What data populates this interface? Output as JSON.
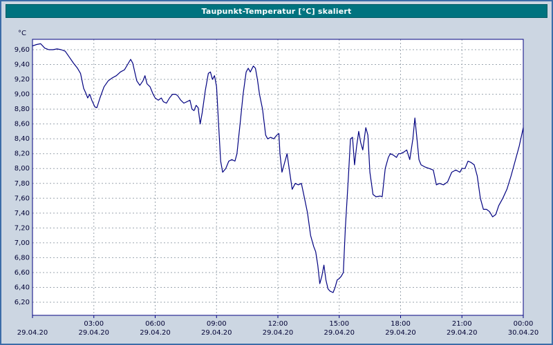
{
  "title": "Taupunkt-Temperatur [°C] skaliert",
  "colors": {
    "window_background": "#ccd6e2",
    "window_border": "#3b6ca8",
    "titlebar_background": "#00737f",
    "titlebar_text": "#ffffff",
    "plot_background": "#ffffff",
    "plot_border": "#000080",
    "gridline": "#9aa4ae",
    "line": "#000080",
    "axis_text": "#000033"
  },
  "chart_data": {
    "type": "line",
    "title": "Taupunkt-Temperatur [°C] skaliert",
    "ylabel": "°C",
    "unit_label": "°C",
    "ylim": [
      6.2,
      9.6
    ],
    "ytick_step": 0.2,
    "ytick_labels": [
      "9,60",
      "9,40",
      "9,20",
      "9,00",
      "8,80",
      "8,60",
      "8,40",
      "8,20",
      "8,00",
      "7,80",
      "7,60",
      "7,40",
      "7,20",
      "7,00",
      "6,80",
      "6,60",
      "6,40",
      "6,20"
    ],
    "ytick_values": [
      9.6,
      9.4,
      9.2,
      9.0,
      8.8,
      8.6,
      8.4,
      8.2,
      8.0,
      7.8,
      7.6,
      7.4,
      7.2,
      7.0,
      6.8,
      6.6,
      6.4,
      6.2
    ],
    "x_hours_range": [
      0,
      24
    ],
    "grid": "dashed",
    "legend": "none",
    "xticks": [
      {
        "hour": 0,
        "time": "",
        "date": "29.04.20"
      },
      {
        "hour": 3,
        "time": "03:00",
        "date": "29.04.20"
      },
      {
        "hour": 6,
        "time": "06:00",
        "date": "29.04.20"
      },
      {
        "hour": 9,
        "time": "09:00",
        "date": "29.04.20"
      },
      {
        "hour": 12,
        "time": "12:00",
        "date": "29.04.20"
      },
      {
        "hour": 15,
        "time": "15:00",
        "date": "29.04.20"
      },
      {
        "hour": 18,
        "time": "18:00",
        "date": "29.04.20"
      },
      {
        "hour": 21,
        "time": "21:00",
        "date": "29.04.20"
      },
      {
        "hour": 24,
        "time": "00:00",
        "date": "30.04.20"
      }
    ],
    "series": [
      {
        "name": "Taupunkt-Temperatur",
        "points": [
          [
            0.0,
            9.65
          ],
          [
            0.2,
            9.67
          ],
          [
            0.4,
            9.68
          ],
          [
            0.6,
            9.62
          ],
          [
            0.8,
            9.6
          ],
          [
            1.0,
            9.6
          ],
          [
            1.2,
            9.61
          ],
          [
            1.4,
            9.6
          ],
          [
            1.6,
            9.58
          ],
          [
            1.8,
            9.5
          ],
          [
            2.0,
            9.42
          ],
          [
            2.2,
            9.35
          ],
          [
            2.35,
            9.28
          ],
          [
            2.5,
            9.08
          ],
          [
            2.6,
            9.02
          ],
          [
            2.7,
            8.95
          ],
          [
            2.8,
            9.0
          ],
          [
            2.9,
            8.92
          ],
          [
            3.05,
            8.83
          ],
          [
            3.15,
            8.82
          ],
          [
            3.3,
            8.95
          ],
          [
            3.5,
            9.1
          ],
          [
            3.7,
            9.18
          ],
          [
            3.9,
            9.22
          ],
          [
            4.1,
            9.25
          ],
          [
            4.3,
            9.3
          ],
          [
            4.5,
            9.33
          ],
          [
            4.65,
            9.4
          ],
          [
            4.8,
            9.47
          ],
          [
            4.9,
            9.42
          ],
          [
            5.0,
            9.3
          ],
          [
            5.1,
            9.18
          ],
          [
            5.25,
            9.12
          ],
          [
            5.4,
            9.18
          ],
          [
            5.5,
            9.25
          ],
          [
            5.6,
            9.14
          ],
          [
            5.75,
            9.1
          ],
          [
            5.9,
            9.0
          ],
          [
            6.0,
            8.95
          ],
          [
            6.15,
            8.92
          ],
          [
            6.3,
            8.95
          ],
          [
            6.4,
            8.9
          ],
          [
            6.55,
            8.88
          ],
          [
            6.7,
            8.95
          ],
          [
            6.85,
            9.0
          ],
          [
            7.0,
            9.0
          ],
          [
            7.1,
            8.98
          ],
          [
            7.25,
            8.92
          ],
          [
            7.4,
            8.88
          ],
          [
            7.55,
            8.9
          ],
          [
            7.7,
            8.92
          ],
          [
            7.8,
            8.8
          ],
          [
            7.9,
            8.78
          ],
          [
            8.0,
            8.85
          ],
          [
            8.1,
            8.82
          ],
          [
            8.2,
            8.6
          ],
          [
            8.3,
            8.75
          ],
          [
            8.45,
            9.05
          ],
          [
            8.6,
            9.28
          ],
          [
            8.7,
            9.3
          ],
          [
            8.8,
            9.2
          ],
          [
            8.9,
            9.25
          ],
          [
            9.0,
            9.1
          ],
          [
            9.1,
            8.6
          ],
          [
            9.2,
            8.1
          ],
          [
            9.3,
            7.95
          ],
          [
            9.45,
            8.0
          ],
          [
            9.6,
            8.1
          ],
          [
            9.75,
            8.12
          ],
          [
            9.9,
            8.1
          ],
          [
            10.0,
            8.2
          ],
          [
            10.15,
            8.6
          ],
          [
            10.3,
            9.0
          ],
          [
            10.45,
            9.3
          ],
          [
            10.55,
            9.35
          ],
          [
            10.65,
            9.3
          ],
          [
            10.8,
            9.38
          ],
          [
            10.9,
            9.35
          ],
          [
            11.0,
            9.2
          ],
          [
            11.1,
            9.0
          ],
          [
            11.25,
            8.8
          ],
          [
            11.4,
            8.45
          ],
          [
            11.5,
            8.4
          ],
          [
            11.65,
            8.42
          ],
          [
            11.8,
            8.4
          ],
          [
            11.95,
            8.45
          ],
          [
            12.05,
            8.47
          ],
          [
            12.1,
            8.2
          ],
          [
            12.2,
            7.95
          ],
          [
            12.3,
            8.05
          ],
          [
            12.45,
            8.2
          ],
          [
            12.55,
            8.0
          ],
          [
            12.7,
            7.72
          ],
          [
            12.85,
            7.8
          ],
          [
            13.0,
            7.78
          ],
          [
            13.15,
            7.8
          ],
          [
            13.3,
            7.6
          ],
          [
            13.45,
            7.4
          ],
          [
            13.6,
            7.1
          ],
          [
            13.75,
            6.95
          ],
          [
            13.85,
            6.88
          ],
          [
            13.95,
            6.7
          ],
          [
            14.05,
            6.45
          ],
          [
            14.15,
            6.55
          ],
          [
            14.25,
            6.7
          ],
          [
            14.35,
            6.5
          ],
          [
            14.45,
            6.38
          ],
          [
            14.55,
            6.35
          ],
          [
            14.7,
            6.33
          ],
          [
            14.8,
            6.4
          ],
          [
            14.9,
            6.5
          ],
          [
            15.0,
            6.52
          ],
          [
            15.1,
            6.55
          ],
          [
            15.2,
            6.6
          ],
          [
            15.3,
            7.2
          ],
          [
            15.45,
            7.9
          ],
          [
            15.55,
            8.4
          ],
          [
            15.65,
            8.42
          ],
          [
            15.75,
            8.05
          ],
          [
            15.85,
            8.3
          ],
          [
            15.95,
            8.5
          ],
          [
            16.05,
            8.35
          ],
          [
            16.15,
            8.25
          ],
          [
            16.3,
            8.55
          ],
          [
            16.4,
            8.45
          ],
          [
            16.5,
            7.95
          ],
          [
            16.65,
            7.65
          ],
          [
            16.8,
            7.62
          ],
          [
            17.0,
            7.63
          ],
          [
            17.1,
            7.62
          ],
          [
            17.25,
            8.0
          ],
          [
            17.4,
            8.15
          ],
          [
            17.5,
            8.2
          ],
          [
            17.65,
            8.18
          ],
          [
            17.8,
            8.15
          ],
          [
            17.9,
            8.2
          ],
          [
            18.0,
            8.2
          ],
          [
            18.15,
            8.22
          ],
          [
            18.3,
            8.25
          ],
          [
            18.45,
            8.12
          ],
          [
            18.6,
            8.4
          ],
          [
            18.7,
            8.68
          ],
          [
            18.8,
            8.4
          ],
          [
            18.9,
            8.12
          ],
          [
            19.0,
            8.05
          ],
          [
            19.2,
            8.02
          ],
          [
            19.4,
            8.0
          ],
          [
            19.6,
            7.98
          ],
          [
            19.75,
            7.78
          ],
          [
            19.9,
            7.8
          ],
          [
            20.1,
            7.78
          ],
          [
            20.3,
            7.82
          ],
          [
            20.5,
            7.95
          ],
          [
            20.7,
            7.98
          ],
          [
            20.9,
            7.95
          ],
          [
            21.0,
            8.0
          ],
          [
            21.15,
            8.0
          ],
          [
            21.3,
            8.1
          ],
          [
            21.45,
            8.08
          ],
          [
            21.6,
            8.05
          ],
          [
            21.75,
            7.9
          ],
          [
            21.9,
            7.6
          ],
          [
            22.05,
            7.45
          ],
          [
            22.2,
            7.45
          ],
          [
            22.35,
            7.42
          ],
          [
            22.5,
            7.35
          ],
          [
            22.65,
            7.38
          ],
          [
            22.8,
            7.5
          ],
          [
            23.0,
            7.6
          ],
          [
            23.2,
            7.72
          ],
          [
            23.4,
            7.9
          ],
          [
            23.6,
            8.1
          ],
          [
            23.8,
            8.3
          ],
          [
            24.0,
            8.55
          ]
        ]
      }
    ]
  }
}
